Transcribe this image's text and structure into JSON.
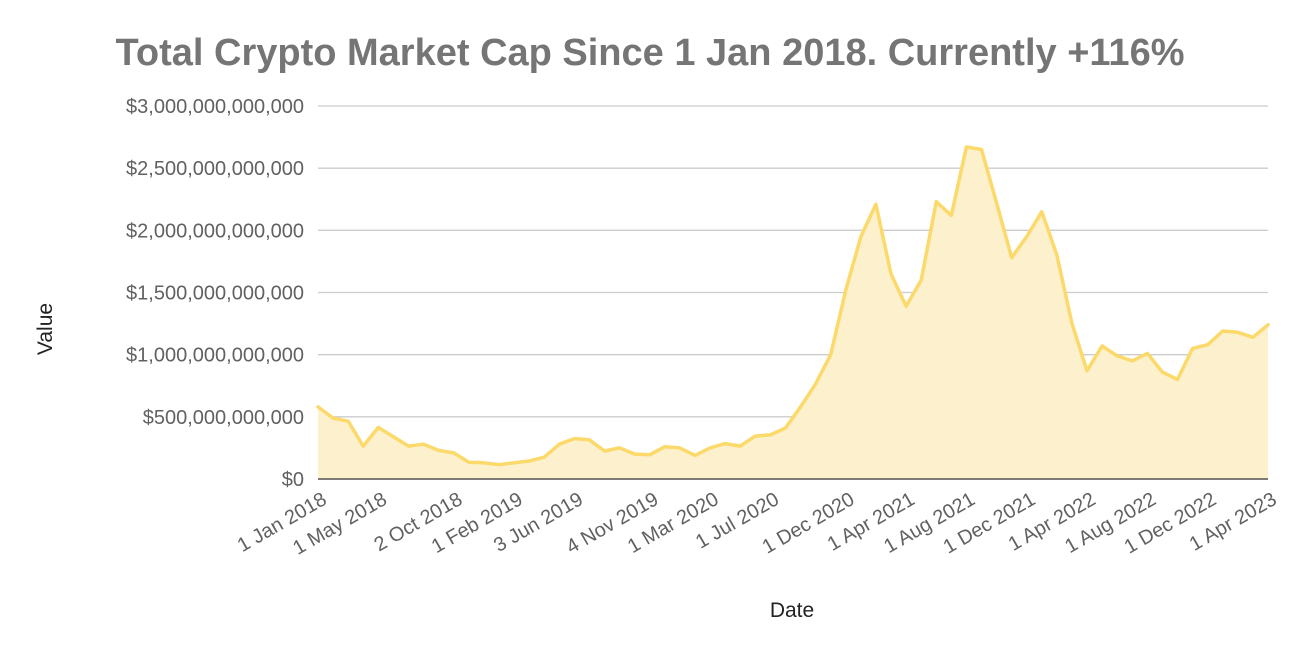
{
  "chart_data": {
    "type": "area",
    "title": "Total Crypto Market Cap Since 1 Jan 2018. Currently +116%",
    "xlabel": "Date",
    "ylabel": "Value",
    "ylim": [
      0,
      3000000000000
    ],
    "yticks": [
      0,
      500000000000,
      1000000000000,
      1500000000000,
      2000000000000,
      2500000000000,
      3000000000000
    ],
    "ytick_labels": [
      "$0",
      "$500,000,000,000",
      "$1,000,000,000,000",
      "$1,500,000,000,000",
      "$2,000,000,000,000",
      "$2,500,000,000,000",
      "$3,000,000,000,000"
    ],
    "x_tick_labels": [
      {
        "label": "1 Jan 2018",
        "index": 0
      },
      {
        "label": "1 May 2018",
        "index": 4
      },
      {
        "label": "2 Oct 2018",
        "index": 9
      },
      {
        "label": "1 Feb 2019",
        "index": 13
      },
      {
        "label": "3 Jun 2019",
        "index": 17
      },
      {
        "label": "4 Nov 2019",
        "index": 22
      },
      {
        "label": "1 Mar 2020",
        "index": 26
      },
      {
        "label": "1 Jul 2020",
        "index": 30
      },
      {
        "label": "1 Dec 2020",
        "index": 35
      },
      {
        "label": "1 Apr 2021",
        "index": 39
      },
      {
        "label": "1 Aug 2021",
        "index": 43
      },
      {
        "label": "1 Dec 2021",
        "index": 47
      },
      {
        "label": "1 Apr 2022",
        "index": 51
      },
      {
        "label": "1 Aug 2022",
        "index": 55
      },
      {
        "label": "1 Dec 2022",
        "index": 59
      },
      {
        "label": "1 Apr 2023",
        "index": 63
      }
    ],
    "grid": true,
    "legend": "none",
    "colors": {
      "line": "#fbd96a",
      "fill": "#fdf1cd",
      "grid": "#cccccc"
    },
    "series": [
      {
        "values": [
          580000000000,
          490000000000,
          465000000000,
          265000000000,
          415000000000,
          340000000000,
          265000000000,
          280000000000,
          230000000000,
          210000000000,
          135000000000,
          130000000000,
          115000000000,
          130000000000,
          145000000000,
          175000000000,
          280000000000,
          325000000000,
          315000000000,
          225000000000,
          250000000000,
          200000000000,
          195000000000,
          260000000000,
          250000000000,
          190000000000,
          250000000000,
          285000000000,
          265000000000,
          345000000000,
          355000000000,
          410000000000,
          580000000000,
          765000000000,
          1000000000000,
          1520000000000,
          1950000000000,
          2210000000000,
          1650000000000,
          1390000000000,
          1600000000000,
          2230000000000,
          2120000000000,
          2670000000000,
          2650000000000,
          2220000000000,
          1780000000000,
          1950000000000,
          2150000000000,
          1800000000000,
          1250000000000,
          870000000000,
          1070000000000,
          990000000000,
          950000000000,
          1010000000000,
          860000000000,
          800000000000,
          1050000000000,
          1080000000000,
          1190000000000,
          1180000000000,
          1140000000000,
          1240000000000
        ]
      }
    ]
  }
}
